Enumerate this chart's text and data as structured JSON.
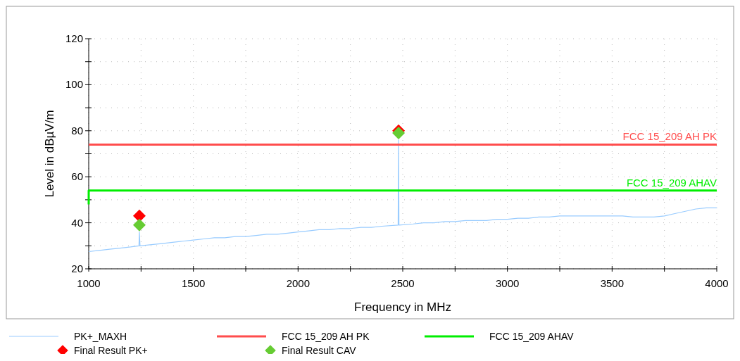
{
  "chart_data": {
    "type": "line",
    "xlabel": "Frequency in MHz",
    "ylabel": "Level in dBµV/m",
    "xlim": [
      1000,
      4000
    ],
    "ylim": [
      20,
      120
    ],
    "xticks": [
      1000,
      {
        "value": 1250,
        "label": null
      },
      1500,
      {
        "value": 1750,
        "label": null
      },
      2000,
      {
        "value": 2250,
        "label": null
      },
      2500,
      {
        "value": 2750,
        "label": null
      },
      3000,
      {
        "value": 3250,
        "label": null
      },
      3500,
      {
        "value": 3750,
        "label": null
      },
      4000
    ],
    "yticks": [
      20,
      {
        "value": 30,
        "label": null
      },
      40,
      {
        "value": 50,
        "label": null
      },
      60,
      {
        "value": 70,
        "label": null
      },
      80,
      {
        "value": 90,
        "label": null
      },
      100,
      {
        "value": 110,
        "label": null
      },
      120
    ],
    "grid": true,
    "legend": "bottom",
    "line_style": "solid",
    "series": [
      {
        "name": "PK+_MAXH",
        "color": "#99ccff",
        "x": [
          1000,
          1050,
          1100,
          1150,
          1200,
          1240,
          1242,
          1245,
          1300,
          1350,
          1400,
          1450,
          1500,
          1550,
          1600,
          1650,
          1700,
          1750,
          1800,
          1850,
          1900,
          1950,
          2000,
          2050,
          2100,
          2150,
          2200,
          2250,
          2300,
          2350,
          2400,
          2478,
          2480,
          2482,
          2550,
          2600,
          2650,
          2700,
          2750,
          2800,
          2850,
          2900,
          2950,
          3000,
          3050,
          3100,
          3150,
          3200,
          3250,
          3300,
          3350,
          3400,
          3450,
          3500,
          3550,
          3600,
          3650,
          3700,
          3750,
          3800,
          3850,
          3900,
          3950,
          4000
        ],
        "values": [
          27.5,
          28,
          28.5,
          29,
          29.5,
          30,
          36,
          30,
          30.5,
          31,
          31.5,
          32,
          32.5,
          33,
          33.5,
          33.5,
          34,
          34,
          34.5,
          35,
          35,
          35.5,
          36,
          36.5,
          37,
          37,
          37.5,
          37.5,
          38,
          38,
          38.5,
          39,
          76,
          39,
          39.5,
          40,
          40,
          40.5,
          40.5,
          41,
          41,
          41,
          41.5,
          41.5,
          42,
          42,
          42.5,
          42.5,
          43,
          43,
          43,
          43,
          43,
          43,
          43,
          42.5,
          42.5,
          42.5,
          43,
          44,
          45,
          46,
          46.5,
          46.5
        ]
      },
      {
        "name": "FCC 15_209 AH PK",
        "color": "#ff4d4d",
        "x": [
          1000,
          4000
        ],
        "values": [
          74,
          74
        ]
      },
      {
        "name": "FCC 15_209 AHAV",
        "color": "#00ee00",
        "x": [
          1000,
          1000,
          4000
        ],
        "values": [
          48,
          54,
          54
        ]
      },
      {
        "name": "Final  Result PK+",
        "color": "#ff0000",
        "type": "scatter",
        "marker": "diamond",
        "x": [
          1242,
          2480
        ],
        "values": [
          43,
          80
        ]
      },
      {
        "name": "Final  Result CAV",
        "color": "#66cc33",
        "type": "scatter",
        "marker": "diamond",
        "x": [
          1242,
          2480
        ],
        "values": [
          39,
          79
        ]
      }
    ],
    "annotations": [
      {
        "text": "FCC 15_209 AH PK",
        "x": 4000,
        "y": 74
      },
      {
        "text": "FCC 15_209 AHAV",
        "x": 4000,
        "y": 54
      }
    ]
  }
}
